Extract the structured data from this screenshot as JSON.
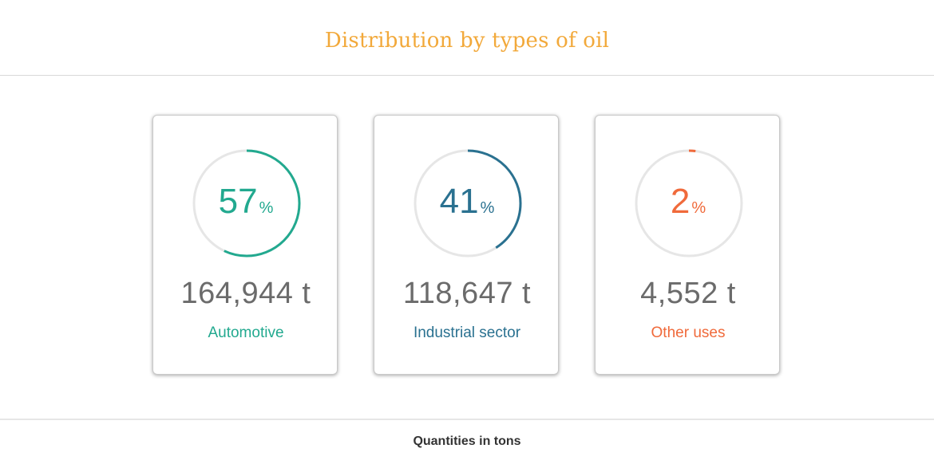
{
  "title": "Distribution by types of oil",
  "cards": [
    {
      "percent": "57",
      "unit": "%",
      "fraction": 0.57,
      "quantity": "164,944 t",
      "label": "Automotive",
      "color": "#22a98f"
    },
    {
      "percent": "41",
      "unit": "%",
      "fraction": 0.41,
      "quantity": "118,647 t",
      "label": "Industrial sector",
      "color": "#2a7190"
    },
    {
      "percent": "2",
      "unit": "%",
      "fraction": 0.02,
      "quantity": "4,552 t",
      "label": "Other uses",
      "color": "#f06a3b"
    }
  ],
  "footer": "Quantities in tons",
  "colors": {
    "title": "#f2a93b",
    "track": "#e6e6e6",
    "quantity": "#6b6b6b"
  }
}
